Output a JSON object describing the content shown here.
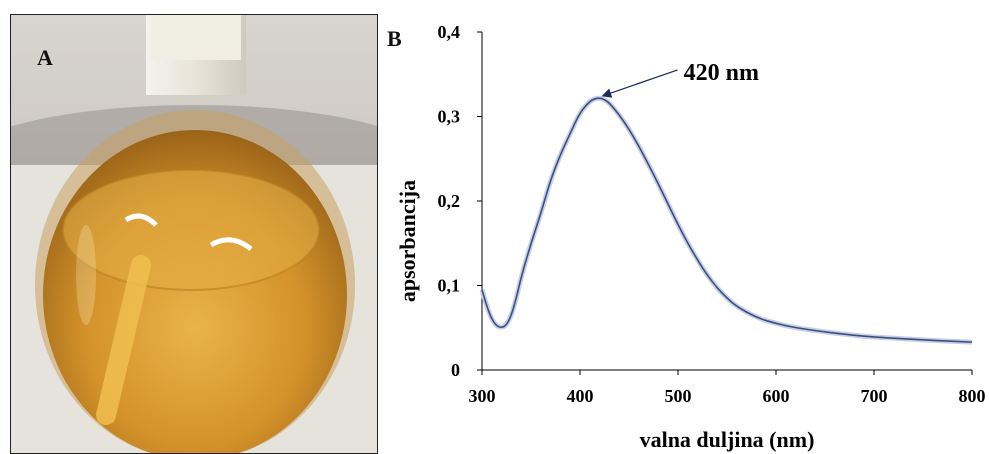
{
  "panel_a": {
    "label": "A",
    "photo": "flask-with-yellow-orange-solution"
  },
  "panel_b": {
    "label": "B"
  },
  "colors": {
    "curve": "#3d4f7e",
    "curve_glow": "#c7d0e8",
    "arrow": "#1a2a5a",
    "solution": "#d89a2a"
  },
  "chart_data": {
    "type": "line",
    "xlabel": "valna duljina (nm)",
    "ylabel": "apsorbancija",
    "xlim": [
      300,
      800
    ],
    "ylim": [
      0,
      0.4
    ],
    "x_ticks": [
      300,
      400,
      500,
      600,
      700,
      800
    ],
    "x_tick_labels": [
      "300",
      "400",
      "500",
      "600",
      "700",
      "800"
    ],
    "y_ticks": [
      0,
      0.1,
      0.2,
      0.3,
      0.4
    ],
    "y_tick_labels": [
      "0",
      "0,1",
      "0,2",
      "0,3",
      "0,4"
    ],
    "grid": false,
    "series": [
      {
        "x": [
          300,
          305,
          310,
          315,
          320,
          325,
          330,
          335,
          340,
          350,
          360,
          370,
          380,
          390,
          400,
          410,
          415,
          420,
          425,
          430,
          440,
          450,
          460,
          470,
          480,
          490,
          500,
          510,
          520,
          530,
          540,
          550,
          560,
          580,
          600,
          620,
          650,
          680,
          700,
          730,
          760,
          780,
          800
        ],
        "y": [
          0.095,
          0.075,
          0.06,
          0.052,
          0.05,
          0.053,
          0.065,
          0.085,
          0.11,
          0.15,
          0.185,
          0.225,
          0.255,
          0.28,
          0.305,
          0.318,
          0.321,
          0.322,
          0.32,
          0.316,
          0.302,
          0.285,
          0.265,
          0.243,
          0.22,
          0.196,
          0.172,
          0.15,
          0.13,
          0.112,
          0.097,
          0.085,
          0.075,
          0.062,
          0.055,
          0.05,
          0.045,
          0.041,
          0.039,
          0.037,
          0.035,
          0.034,
          0.033
        ]
      }
    ],
    "annotations": [
      {
        "text": "420 nm",
        "x": 420,
        "y": 0.322
      }
    ]
  }
}
